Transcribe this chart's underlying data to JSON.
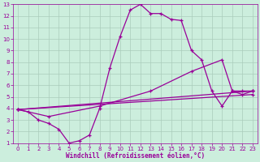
{
  "xlabel": "Windchill (Refroidissement éolien,°C)",
  "bg_color": "#cceedd",
  "grid_color": "#aaccbb",
  "line_color": "#990099",
  "xlim": [
    -0.5,
    23.5
  ],
  "ylim": [
    1,
    13
  ],
  "xticks": [
    0,
    1,
    2,
    3,
    4,
    5,
    6,
    7,
    8,
    9,
    10,
    11,
    12,
    13,
    14,
    15,
    16,
    17,
    18,
    19,
    20,
    21,
    22,
    23
  ],
  "yticks": [
    1,
    2,
    3,
    4,
    5,
    6,
    7,
    8,
    9,
    10,
    11,
    12,
    13
  ],
  "lines": [
    {
      "x": [
        0,
        1,
        2,
        3,
        4,
        5,
        6,
        7,
        8,
        9,
        10,
        11,
        12,
        13,
        14,
        15,
        16,
        17,
        18,
        19,
        20,
        21,
        22,
        23
      ],
      "y": [
        3.9,
        3.7,
        3.0,
        2.7,
        2.2,
        1.0,
        1.2,
        1.7,
        4.0,
        7.5,
        10.2,
        12.5,
        13.0,
        12.2,
        12.2,
        11.7,
        11.6,
        9.0,
        8.2,
        5.5,
        4.2,
        5.5,
        5.2,
        5.5
      ]
    },
    {
      "x": [
        0,
        3,
        8,
        13,
        17,
        20,
        21,
        22,
        23
      ],
      "y": [
        3.9,
        3.3,
        4.2,
        5.5,
        7.2,
        8.2,
        5.5,
        5.5,
        5.5
      ]
    },
    {
      "x": [
        0,
        23
      ],
      "y": [
        3.9,
        5.5
      ]
    },
    {
      "x": [
        0,
        23
      ],
      "y": [
        3.9,
        5.2
      ]
    }
  ]
}
